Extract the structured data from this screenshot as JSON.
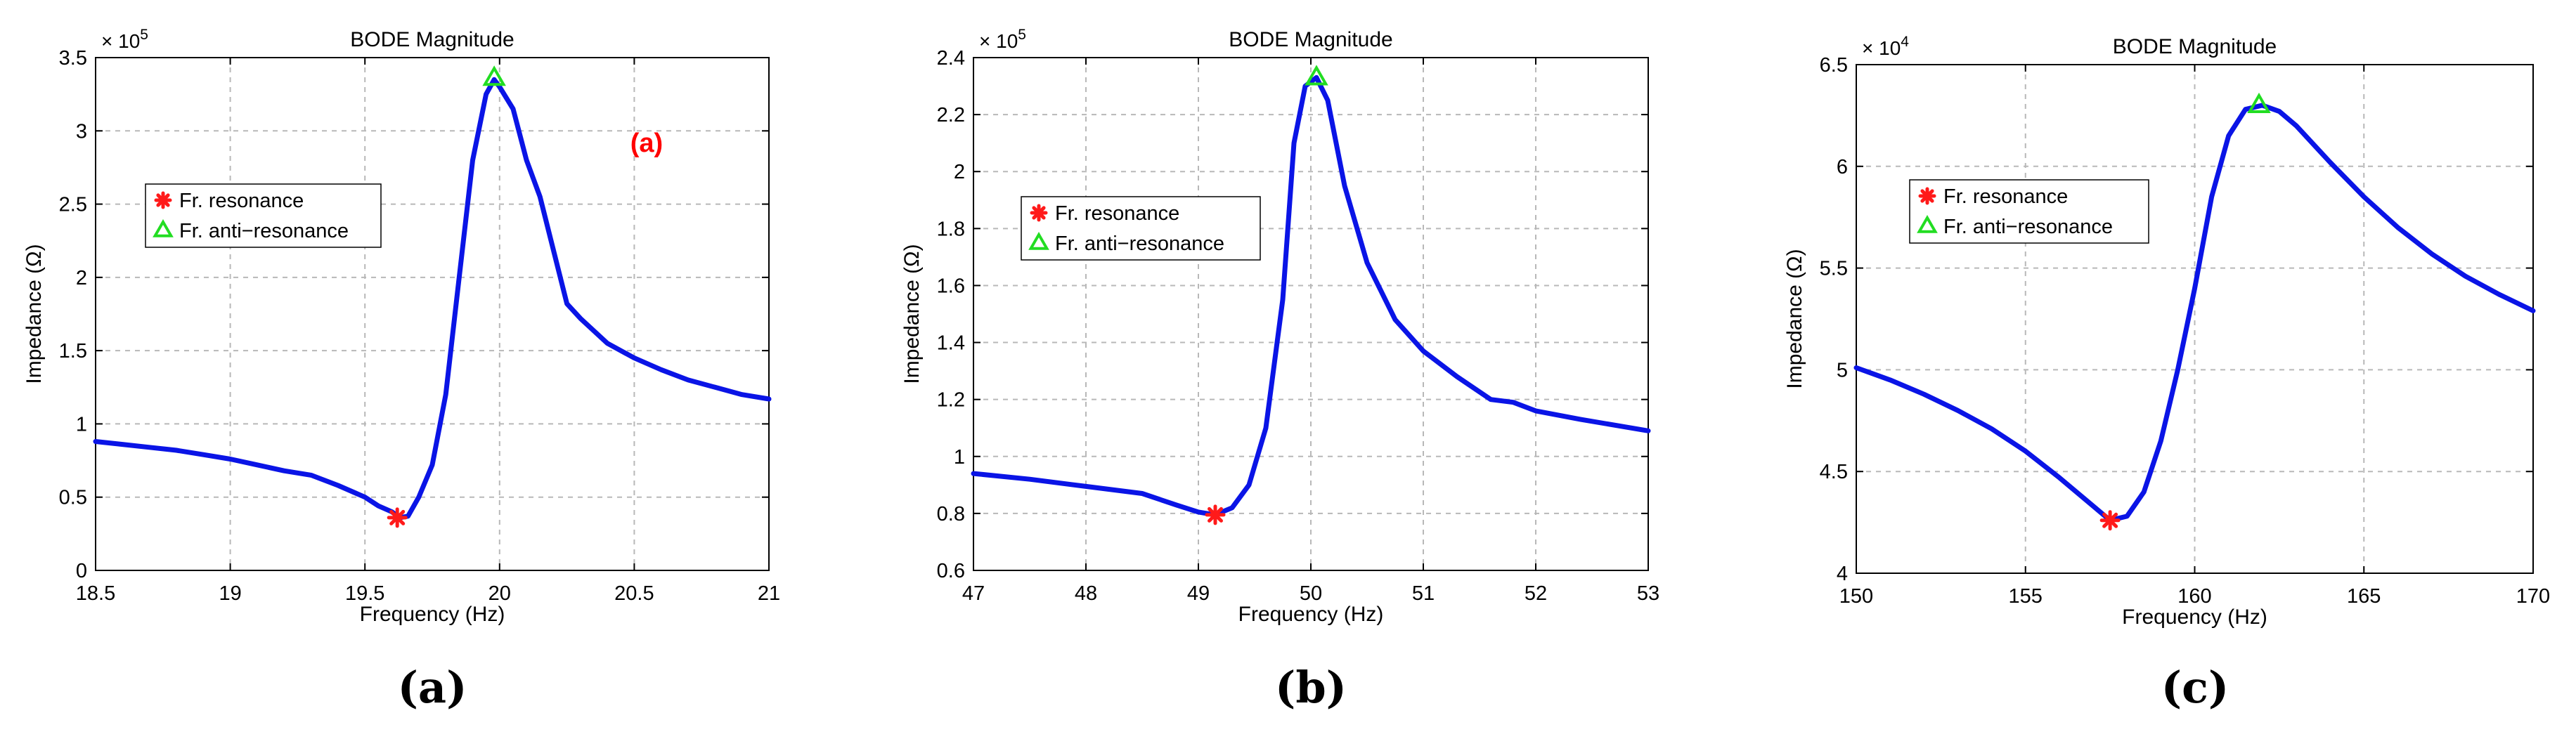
{
  "colors": {
    "curve": "#0a14e6",
    "resonance_marker": "#ff1a1a",
    "anti_resonance_marker": "#22dd22",
    "annotation": "#ff0000",
    "grid": "#b8b8b8",
    "axis": "#000000"
  },
  "chart_data": [
    {
      "type": "line",
      "panel_label": "(a)",
      "annotation": "(a)",
      "title": "BODE Magnitude",
      "xlabel": "Frequency (Hz)",
      "ylabel": "Impedance (Ω)",
      "y_multiplier": "× 10",
      "y_exponent": "5",
      "xlim": [
        18.5,
        21
      ],
      "ylim": [
        0,
        3.5
      ],
      "xticks": [
        "18.5",
        "19",
        "19.5",
        "20",
        "20.5",
        "21"
      ],
      "yticks": [
        "0",
        "0.5",
        "1",
        "1.5",
        "2",
        "2.5",
        "3",
        "3.5"
      ],
      "grid": true,
      "legend": {
        "placement": "upper-left",
        "entries": [
          "Fr. resonance",
          "Fr. anti−resonance"
        ]
      },
      "series": [
        {
          "name": "Impedance",
          "x": [
            18.5,
            18.6,
            18.7,
            18.8,
            18.9,
            19.0,
            19.1,
            19.2,
            19.3,
            19.4,
            19.5,
            19.55,
            19.6,
            19.63,
            19.66,
            19.7,
            19.75,
            19.8,
            19.85,
            19.9,
            19.95,
            19.98,
            20.0,
            20.05,
            20.1,
            20.15,
            20.25,
            20.3,
            20.4,
            20.5,
            20.6,
            20.7,
            20.8,
            20.9,
            21.0
          ],
          "y": [
            0.88,
            0.86,
            0.84,
            0.82,
            0.79,
            0.76,
            0.72,
            0.68,
            0.65,
            0.58,
            0.5,
            0.44,
            0.4,
            0.36,
            0.37,
            0.5,
            0.72,
            1.2,
            2.0,
            2.8,
            3.25,
            3.35,
            3.3,
            3.15,
            2.8,
            2.55,
            1.82,
            1.72,
            1.55,
            1.45,
            1.37,
            1.3,
            1.25,
            1.2,
            1.17
          ]
        }
      ],
      "markers": {
        "resonance": {
          "x": 19.62,
          "y": 0.36
        },
        "anti_resonance": {
          "x": 19.98,
          "y": 3.36
        }
      }
    },
    {
      "type": "line",
      "panel_label": "(b)",
      "title": "BODE Magnitude",
      "xlabel": "Frequency (Hz)",
      "ylabel": "Impedance (Ω)",
      "y_multiplier": "× 10",
      "y_exponent": "5",
      "xlim": [
        47,
        53
      ],
      "ylim": [
        0.6,
        2.4
      ],
      "xticks": [
        "47",
        "48",
        "49",
        "50",
        "51",
        "52",
        "53"
      ],
      "yticks": [
        "0.6",
        "0.8",
        "1",
        "1.2",
        "1.4",
        "1.6",
        "1.8",
        "2",
        "2.2",
        "2.4"
      ],
      "grid": true,
      "legend": {
        "placement": "upper-left",
        "entries": [
          "Fr. resonance",
          "Fr. anti−resonance"
        ]
      },
      "series": [
        {
          "name": "Impedance",
          "x": [
            47.0,
            47.5,
            48.0,
            48.5,
            48.8,
            49.0,
            49.15,
            49.3,
            49.45,
            49.6,
            49.75,
            49.85,
            49.95,
            50.05,
            50.15,
            50.3,
            50.5,
            50.75,
            51.0,
            51.3,
            51.6,
            51.8,
            52.0,
            52.4,
            53.0
          ],
          "y": [
            0.94,
            0.92,
            0.895,
            0.87,
            0.83,
            0.805,
            0.795,
            0.82,
            0.9,
            1.1,
            1.55,
            2.1,
            2.3,
            2.33,
            2.25,
            1.95,
            1.68,
            1.48,
            1.37,
            1.28,
            1.2,
            1.19,
            1.16,
            1.13,
            1.09
          ]
        }
      ],
      "markers": {
        "resonance": {
          "x": 49.15,
          "y": 0.795
        },
        "anti_resonance": {
          "x": 50.05,
          "y": 2.33
        }
      }
    },
    {
      "type": "line",
      "panel_label": "(c)",
      "title": "BODE Magnitude",
      "xlabel": "Frequency (Hz)",
      "ylabel": "Impedance (Ω)",
      "y_multiplier": "× 10",
      "y_exponent": "4",
      "xlim": [
        150,
        170
      ],
      "ylim": [
        4,
        6.5
      ],
      "xticks": [
        "150",
        "155",
        "160",
        "165",
        "170"
      ],
      "yticks": [
        "4",
        "4.5",
        "5",
        "5.5",
        "6",
        "6.5"
      ],
      "grid": true,
      "legend": {
        "placement": "upper-left",
        "entries": [
          "Fr. resonance",
          "Fr. anti−resonance"
        ]
      },
      "series": [
        {
          "name": "Impedance",
          "x": [
            150,
            151,
            152,
            153,
            154,
            155,
            156,
            157,
            157.5,
            158,
            158.5,
            159,
            159.5,
            160,
            160.5,
            161,
            161.5,
            162,
            162.5,
            163,
            164,
            165,
            166,
            167,
            168,
            169,
            170
          ],
          "y": [
            5.01,
            4.95,
            4.88,
            4.8,
            4.71,
            4.6,
            4.47,
            4.33,
            4.26,
            4.28,
            4.4,
            4.65,
            5.0,
            5.4,
            5.85,
            6.15,
            6.28,
            6.3,
            6.27,
            6.2,
            6.02,
            5.85,
            5.7,
            5.57,
            5.46,
            5.37,
            5.29
          ]
        }
      ],
      "markers": {
        "resonance": {
          "x": 157.5,
          "y": 4.26
        },
        "anti_resonance": {
          "x": 161.9,
          "y": 6.3
        }
      }
    }
  ]
}
